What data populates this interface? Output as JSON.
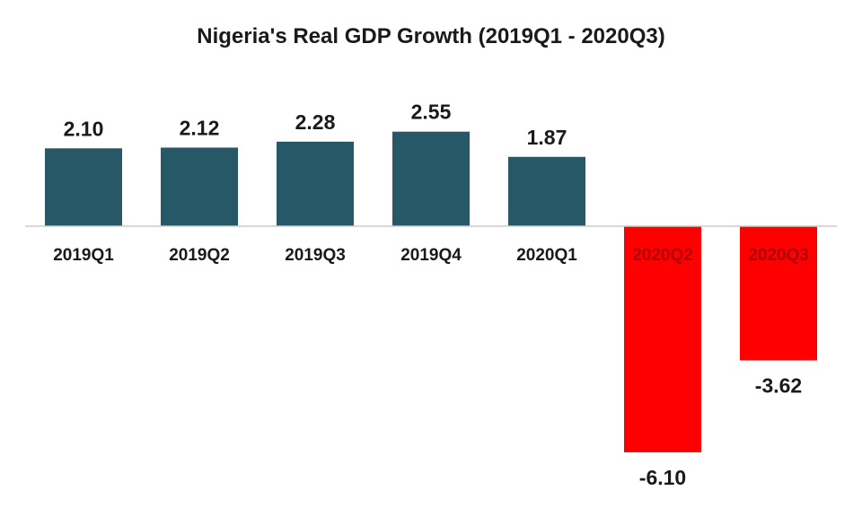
{
  "chart_data": {
    "type": "bar",
    "title": "Nigeria's Real GDP Growth (2019Q1 - 2020Q3)",
    "xlabel": "",
    "ylabel": "",
    "categories": [
      "2019Q1",
      "2019Q2",
      "2019Q3",
      "2019Q4",
      "2020Q1",
      "2020Q2",
      "2020Q3"
    ],
    "values": [
      2.1,
      2.12,
      2.28,
      2.55,
      1.87,
      -6.1,
      -3.62
    ],
    "value_labels": [
      "2.10",
      "2.12",
      "2.28",
      "2.55",
      "1.87",
      "-6.10",
      "-3.62"
    ],
    "ylim": [
      -6.1,
      2.55
    ],
    "grid": false,
    "legend": "none",
    "colors": {
      "positive": "#265867",
      "negative": "#ff0000",
      "label_on_positive": "#1a1a1a",
      "label_on_negative": "#b00000",
      "baseline": "#cccccc"
    }
  }
}
